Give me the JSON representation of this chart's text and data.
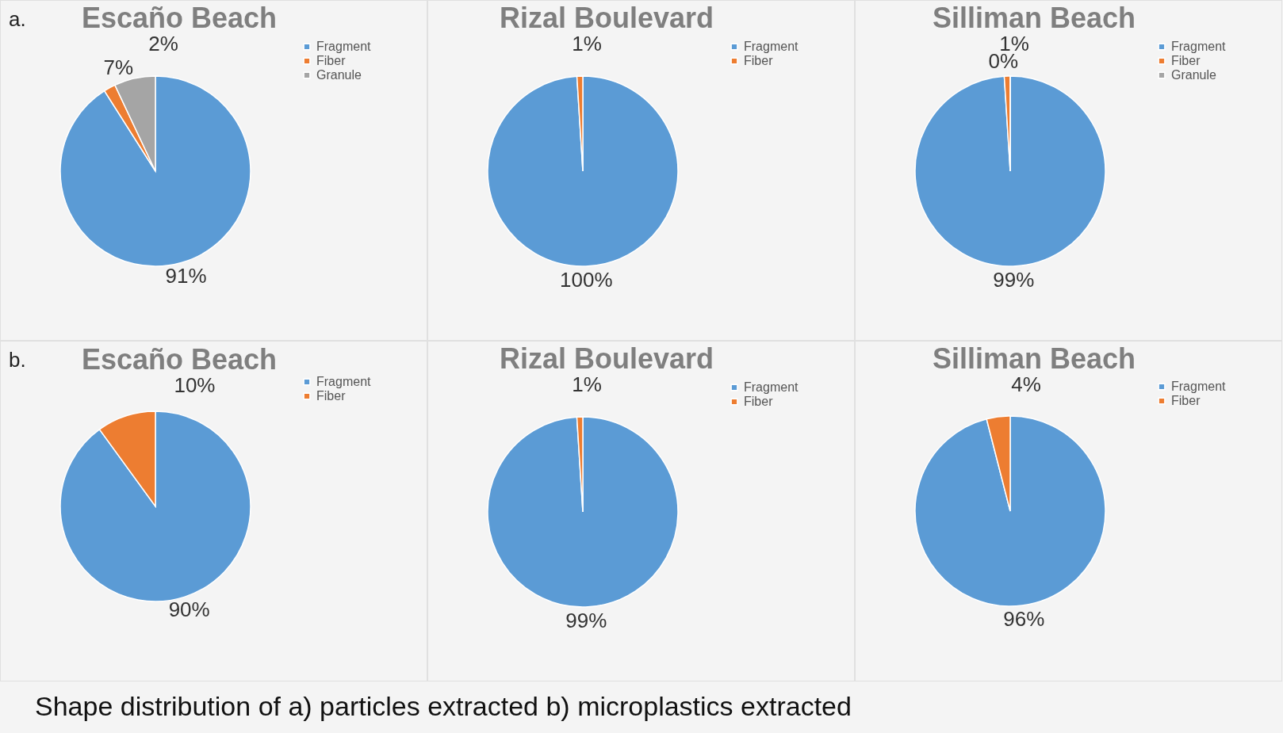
{
  "chart_data": [
    {
      "type": "pie",
      "title": "Escaño Beach",
      "categories": [
        "Fragment",
        "Fiber",
        "Granule"
      ],
      "values": [
        91,
        2,
        7
      ],
      "value_labels": [
        "91%",
        "2%",
        "7%"
      ],
      "colors": [
        "#5b9bd5",
        "#ed7d31",
        "#a5a5a5"
      ],
      "legend": "right",
      "annotations": [
        "a."
      ]
    },
    {
      "type": "pie",
      "title": "Rizal Boulevard",
      "categories": [
        "Fragment",
        "Fiber"
      ],
      "values": [
        100,
        1
      ],
      "value_labels": [
        "100%",
        "1%"
      ],
      "colors": [
        "#5b9bd5",
        "#ed7d31"
      ],
      "legend": "right"
    },
    {
      "type": "pie",
      "title": "Silliman Beach",
      "categories": [
        "Fragment",
        "Fiber",
        "Granule"
      ],
      "values": [
        99,
        1,
        0
      ],
      "value_labels": [
        "99%",
        "1%",
        "0%"
      ],
      "colors": [
        "#5b9bd5",
        "#ed7d31",
        "#a5a5a5"
      ],
      "legend": "right"
    },
    {
      "type": "pie",
      "title": "Escaño Beach",
      "categories": [
        "Fragment",
        "Fiber"
      ],
      "values": [
        90,
        10
      ],
      "value_labels": [
        "90%",
        "10%"
      ],
      "colors": [
        "#5b9bd5",
        "#ed7d31"
      ],
      "legend": "right",
      "annotations": [
        "b.",
        "Shape distribution of a) particles extracted b) microplastics extracted"
      ]
    },
    {
      "type": "pie",
      "title": "Rizal Boulevard",
      "categories": [
        "Fragment",
        "Fiber"
      ],
      "values": [
        99,
        1
      ],
      "value_labels": [
        "99%",
        "1%"
      ],
      "colors": [
        "#5b9bd5",
        "#ed7d31"
      ],
      "legend": "right"
    },
    {
      "type": "pie",
      "title": "Silliman Beach",
      "categories": [
        "Fragment",
        "Fiber"
      ],
      "values": [
        96,
        4
      ],
      "value_labels": [
        "96%",
        "4%"
      ],
      "colors": [
        "#5b9bd5",
        "#ed7d31"
      ],
      "legend": "right"
    }
  ]
}
